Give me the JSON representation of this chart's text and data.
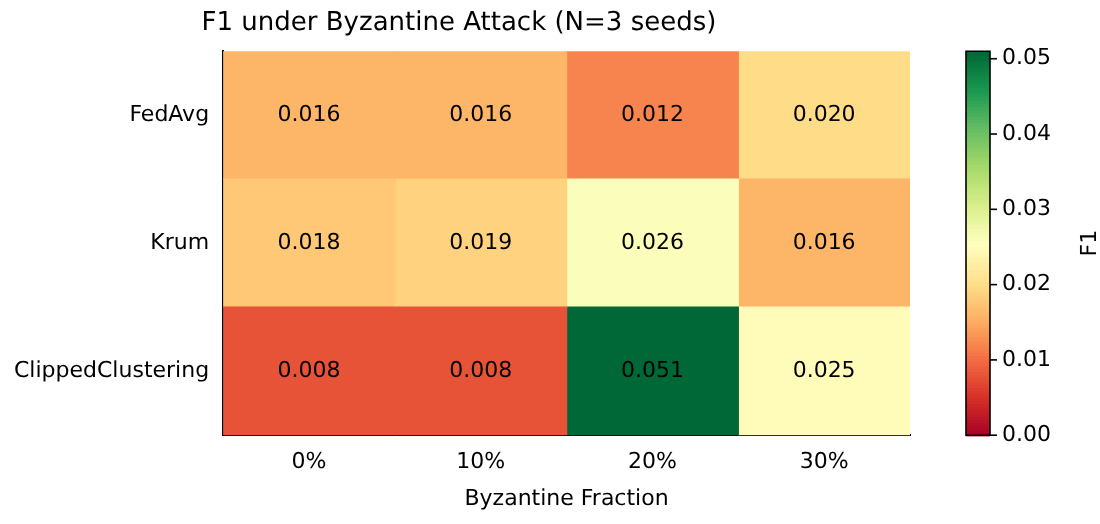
{
  "chart_data": {
    "type": "heatmap",
    "title": "F1 under Byzantine Attack (N=3 seeds)",
    "xlabel": "Byzantine Fraction",
    "clabel": "F1",
    "categories": [
      "0%",
      "10%",
      "20%",
      "30%"
    ],
    "y_categories": [
      "FedAvg",
      "Krum",
      "ClippedClustering"
    ],
    "cells": [
      [
        0.016,
        0.016,
        0.012,
        0.02
      ],
      [
        0.018,
        0.019,
        0.026,
        0.016
      ],
      [
        0.008,
        0.008,
        0.051,
        0.025
      ]
    ],
    "cell_labels": [
      [
        "0.016",
        "0.016",
        "0.012",
        "0.020"
      ],
      [
        "0.018",
        "0.019",
        "0.026",
        "0.016"
      ],
      [
        "0.008",
        "0.008",
        "0.051",
        "0.025"
      ]
    ],
    "clim": [
      0,
      0.051
    ],
    "cticks": [
      {
        "value": 0,
        "label": "0.00"
      },
      {
        "value": 0.01,
        "label": "0.01"
      },
      {
        "value": 0.02,
        "label": "0.02"
      },
      {
        "value": 0.03,
        "label": "0.03"
      },
      {
        "value": 0.04,
        "label": "0.04"
      },
      {
        "value": 0.05,
        "label": "0.05"
      }
    ]
  }
}
